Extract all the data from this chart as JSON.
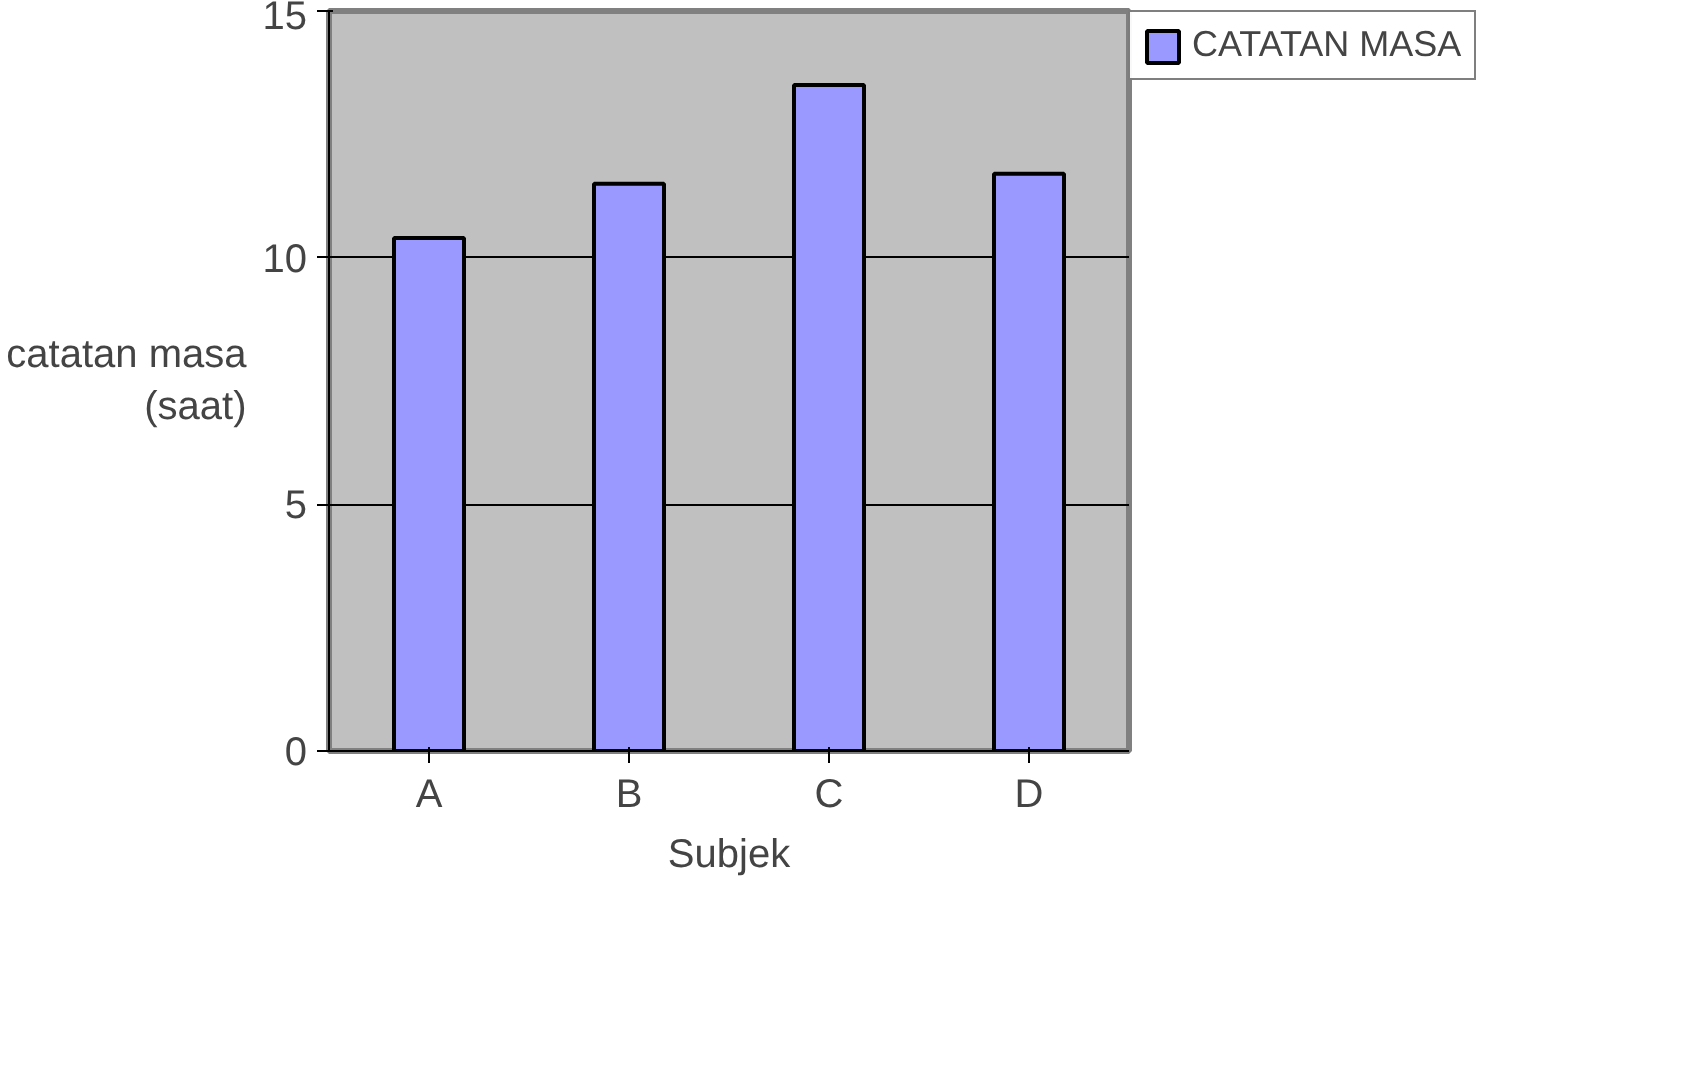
{
  "chart_data": {
    "type": "bar",
    "xlabel": "Subjek",
    "ylabel": "catatan masa\n(saat)",
    "categories": [
      "A",
      "B",
      "C",
      "D"
    ],
    "series": [
      {
        "name": "CATATAN MASA",
        "color": "#9999ff",
        "values": [
          10.4,
          11.5,
          13.5,
          11.7
        ]
      }
    ],
    "ylim": [
      0,
      15
    ],
    "yticks": [
      0,
      5,
      10,
      15
    ],
    "grid": "y",
    "legend": "right"
  }
}
